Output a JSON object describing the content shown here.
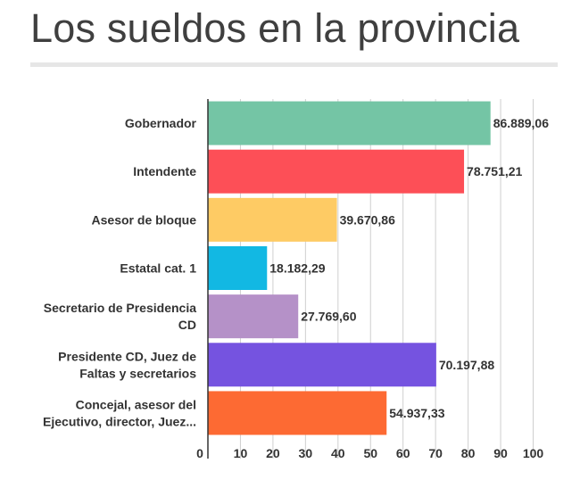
{
  "title": "Los sueldos en la provincia",
  "chart_data": {
    "type": "bar",
    "orientation": "horizontal",
    "title": "",
    "categories": [
      [
        "Gobernador"
      ],
      [
        "Intendente"
      ],
      [
        "Asesor de bloque"
      ],
      [
        "Estatal cat. 1"
      ],
      [
        "Secretario de Presidencia",
        "CD"
      ],
      [
        "Presidente CD, Juez de",
        "Faltas y secretarios"
      ],
      [
        "Concejal, asesor del",
        "Ejecutivo, director, Juez..."
      ]
    ],
    "values": [
      86.88906,
      78.75121,
      39.67086,
      18.18229,
      27.7696,
      70.19788,
      54.93733
    ],
    "value_labels": [
      "86.889,06",
      "78.751,21",
      "39.670,86",
      "18.182,29",
      "27.769,60",
      "70.197,88",
      "54.937,33"
    ],
    "colors": [
      "#74c5a5",
      "#fd4f57",
      "#fecb64",
      "#12b8e3",
      "#b591c8",
      "#7553e0",
      "#fd6a33"
    ],
    "xticks": [
      0,
      10,
      20,
      30,
      40,
      50,
      60,
      70,
      80,
      90,
      100
    ],
    "xlim": [
      0,
      100
    ],
    "grid": true
  }
}
